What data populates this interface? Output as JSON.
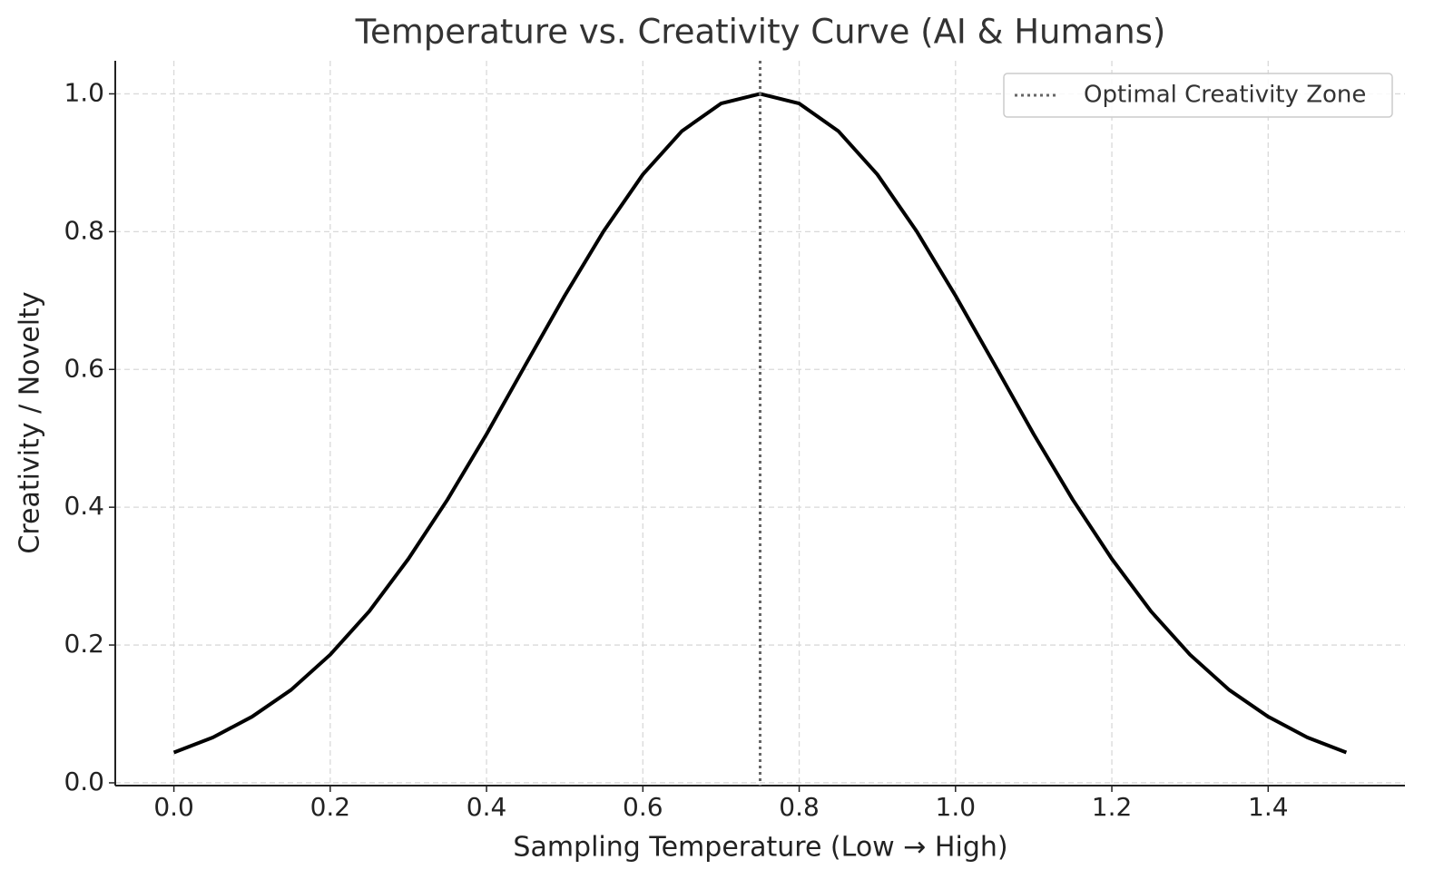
{
  "chart_data": {
    "type": "line",
    "title": "Temperature vs. Creativity Curve (AI & Humans)",
    "x_label": "Sampling Temperature (Low → High)",
    "y_label": "Creativity / Novelty",
    "x": [
      0,
      0.05,
      0.1,
      0.15,
      0.2,
      0.25,
      0.3,
      0.35,
      0.4,
      0.45,
      0.5,
      0.55,
      0.6,
      0.65,
      0.7,
      0.75,
      0.8,
      0.85,
      0.9,
      0.95,
      1.0,
      1.05,
      1.1,
      1.15,
      1.2,
      1.25,
      1.3,
      1.35,
      1.4,
      1.45,
      1.5
    ],
    "series": [
      {
        "color": "#000000",
        "values": [
          0.044,
          0.066,
          0.096,
          0.135,
          0.186,
          0.249,
          0.325,
          0.411,
          0.506,
          0.607,
          0.707,
          0.801,
          0.883,
          0.946,
          0.986,
          1.0,
          0.986,
          0.946,
          0.883,
          0.801,
          0.707,
          0.607,
          0.506,
          0.411,
          0.325,
          0.249,
          0.186,
          0.135,
          0.096,
          0.066,
          0.044
        ]
      }
    ],
    "vline": {
      "value": 0.75,
      "name": "Optimal Creativity Zone",
      "color": "#666666"
    },
    "xlim": [
      -0.075,
      1.575
    ],
    "ylim": [
      -0.004,
      1.048
    ],
    "xticks": [
      {
        "value": 0,
        "label": "0.0"
      },
      0.2,
      0.4,
      0.6,
      0.8,
      {
        "value": 1,
        "label": "1.0"
      },
      1.2,
      1.4
    ],
    "yticks": [
      {
        "value": 0,
        "label": "0.0"
      },
      0.2,
      0.4,
      0.6,
      0.8,
      {
        "value": 1,
        "label": "1.0"
      }
    ],
    "grid": true,
    "legend": "upper-right"
  }
}
